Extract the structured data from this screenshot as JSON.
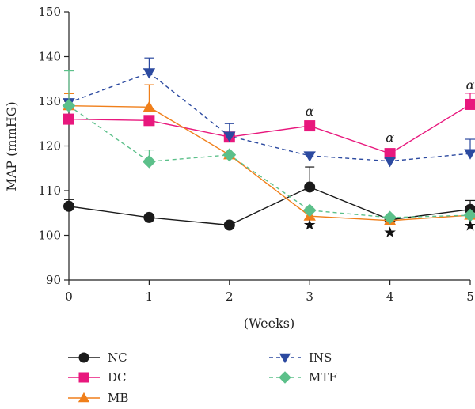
{
  "chart_data": {
    "type": "line",
    "xlabel": "(Weeks)",
    "ylabel": "MAP (mmHG)",
    "x": [
      0,
      1,
      2,
      3,
      4,
      5
    ],
    "xlim": [
      0,
      5
    ],
    "ylim": [
      90,
      150
    ],
    "yticks": [
      90,
      100,
      110,
      120,
      130,
      140,
      150
    ],
    "grid": false,
    "legend_position": "bottom",
    "series": [
      {
        "name": "NC",
        "marker": "circle",
        "color": "#1a1a1a",
        "dashed": false,
        "values": [
          106.5,
          104.0,
          102.3,
          110.8,
          103.5,
          105.8
        ],
        "errors": [
          1.5,
          0,
          0,
          4.5,
          0,
          2.0
        ]
      },
      {
        "name": "DC",
        "marker": "square",
        "color": "#e8177d",
        "dashed": false,
        "values": [
          126.0,
          125.7,
          122.0,
          124.5,
          118.3,
          129.3
        ],
        "errors": [
          0,
          0,
          0,
          0,
          0,
          2.5
        ]
      },
      {
        "name": "MB",
        "marker": "triangle-up",
        "color": "#f07f1a",
        "dashed": false,
        "values": [
          129.0,
          128.7,
          118.0,
          104.3,
          103.3,
          104.5
        ],
        "errors": [
          2.7,
          5.0,
          0,
          0,
          0,
          0
        ]
      },
      {
        "name": "INS",
        "marker": "triangle-down",
        "color": "#2c4aa0",
        "dashed": true,
        "values": [
          129.7,
          136.4,
          122.2,
          117.8,
          116.6,
          118.3
        ],
        "errors": [
          0,
          3.3,
          2.8,
          0,
          0,
          3.2
        ]
      },
      {
        "name": "MTF",
        "marker": "diamond",
        "color": "#5cc08a",
        "dashed": true,
        "values": [
          129.0,
          116.5,
          118.0,
          105.6,
          104.0,
          104.5
        ],
        "errors": [
          7.8,
          2.6,
          0,
          0,
          0,
          0
        ]
      }
    ],
    "annotations": [
      {
        "text": "α",
        "x": 3,
        "y": 127.7
      },
      {
        "text": "α",
        "x": 4,
        "y": 121.8
      },
      {
        "text": "α",
        "x": 5,
        "y": 133.5
      },
      {
        "text": "★",
        "x": 3,
        "y": 102.5
      },
      {
        "text": "★",
        "x": 4,
        "y": 100.8
      },
      {
        "text": "★",
        "x": 5,
        "y": 102.3
      }
    ]
  }
}
